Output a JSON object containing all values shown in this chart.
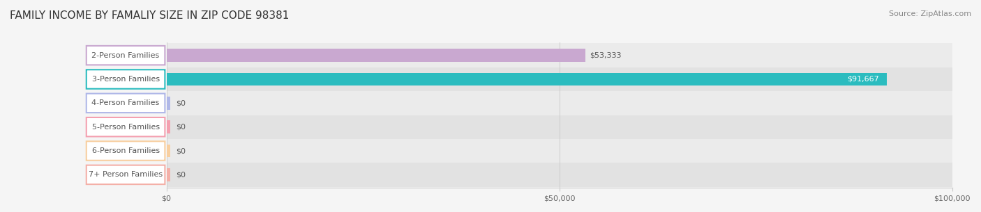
{
  "title": "FAMILY INCOME BY FAMALIY SIZE IN ZIP CODE 98381",
  "source": "Source: ZipAtlas.com",
  "categories": [
    "2-Person Families",
    "3-Person Families",
    "4-Person Families",
    "5-Person Families",
    "6-Person Families",
    "7+ Person Families"
  ],
  "values": [
    53333,
    91667,
    0,
    0,
    0,
    0
  ],
  "bar_colors": [
    "#c9a8d0",
    "#2bbcbf",
    "#b0b8e8",
    "#f4a0b0",
    "#f8cfa0",
    "#f4b0a8"
  ],
  "label_colors": [
    "#c9a8d0",
    "#2bbcbf",
    "#b0b8e8",
    "#f4a0b0",
    "#f8cfa0",
    "#f4b0a8"
  ],
  "value_labels": [
    "$53,333",
    "$91,667",
    "$0",
    "$0",
    "$0",
    "$0"
  ],
  "xlim": [
    0,
    100000
  ],
  "xticks": [
    0,
    50000,
    100000
  ],
  "xtick_labels": [
    "$0",
    "$50,000",
    "$100,000"
  ],
  "bar_height": 0.55,
  "background_color": "#f5f5f5",
  "row_bg_colors": [
    "#efefef",
    "#e8e8e8"
  ],
  "title_fontsize": 11,
  "source_fontsize": 8,
  "label_fontsize": 8,
  "value_fontsize": 8,
  "tick_fontsize": 8
}
